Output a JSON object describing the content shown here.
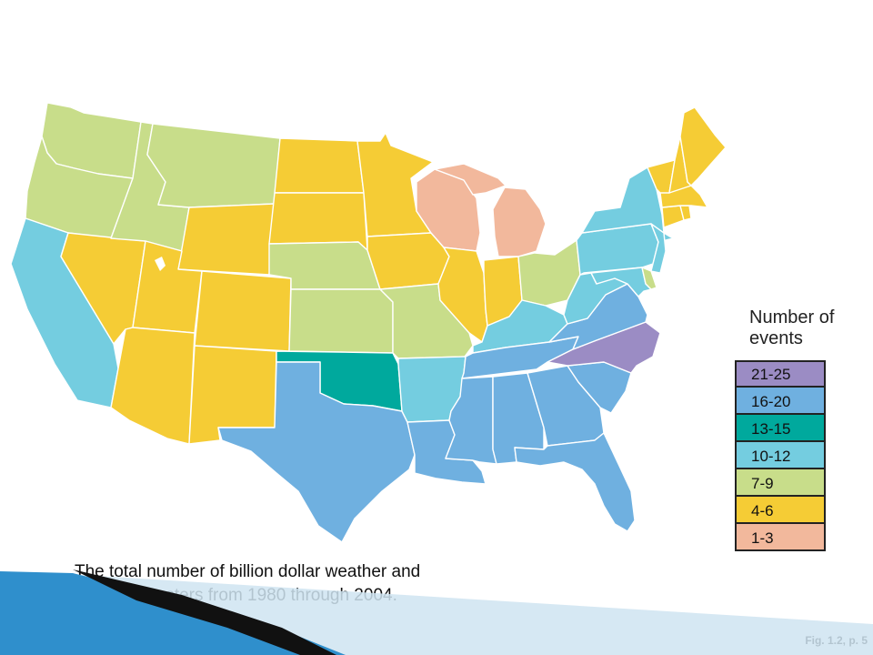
{
  "legend": {
    "title": "Number of events",
    "categories": [
      {
        "label": "21-25",
        "color": "#9b8cc4"
      },
      {
        "label": "16-20",
        "color": "#6fb0e0"
      },
      {
        "label": "13-15",
        "color": "#00a99d"
      },
      {
        "label": "10-12",
        "color": "#74cde0"
      },
      {
        "label": "7-9",
        "color": "#c8dd8a"
      },
      {
        "label": "4-6",
        "color": "#f5cc35"
      },
      {
        "label": "1-3",
        "color": "#f2b89c"
      }
    ]
  },
  "caption": "The total number of billion dollar weather and climate disasters from 1980 through 2004.",
  "figure_ref": "Fig. 1.2, p. 5",
  "map_data": {
    "WA": "7-9",
    "OR": "7-9",
    "ID": "7-9",
    "MT": "7-9",
    "NE": "7-9",
    "KS": "7-9",
    "MO": "7-9",
    "OH": "7-9",
    "DE": "7-9",
    "CA": "10-12",
    "AR": "10-12",
    "KY": "10-12",
    "WV": "10-12",
    "PA": "10-12",
    "NY": "10-12",
    "NJ": "10-12",
    "MD": "10-12",
    "NV": "4-6",
    "UT": "4-6",
    "AZ": "4-6",
    "CO": "4-6",
    "NM": "4-6",
    "WY": "4-6",
    "ND": "4-6",
    "SD": "4-6",
    "MN": "4-6",
    "IA": "4-6",
    "IL": "4-6",
    "IN": "4-6",
    "ME": "4-6",
    "VT": "4-6",
    "NH": "4-6",
    "MA": "4-6",
    "CT": "4-6",
    "RI": "4-6",
    "WI": "1-3",
    "MI": "1-3",
    "OK": "13-15",
    "TX": "16-20",
    "LA": "16-20",
    "MS": "16-20",
    "AL": "16-20",
    "GA": "16-20",
    "FL": "16-20",
    "SC": "16-20",
    "TN": "16-20",
    "VA": "16-20",
    "NC": "21-25"
  }
}
